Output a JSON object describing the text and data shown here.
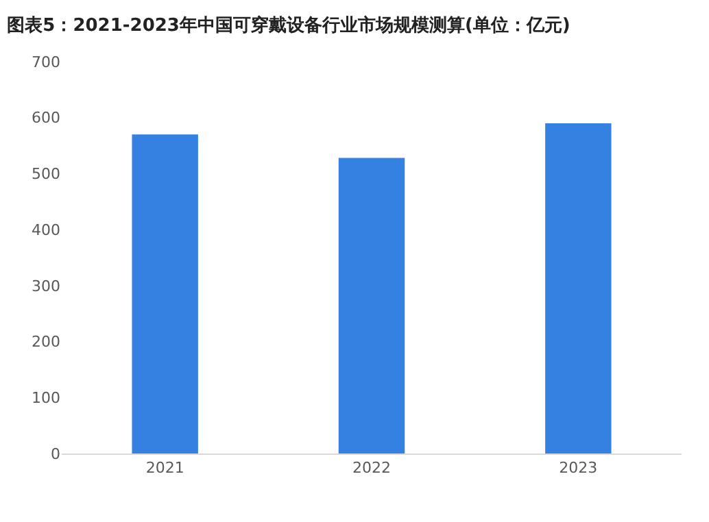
{
  "chart_data": {
    "type": "bar",
    "title": "图表5：2021-2023年中国可穿戴设备行业市场规模测算(单位：亿元)",
    "categories": [
      "2021",
      "2022",
      "2023"
    ],
    "values": [
      570,
      528,
      590
    ],
    "color": "#3481e2",
    "ylim": [
      0,
      700
    ],
    "yticks": [
      0,
      100,
      200,
      300,
      400,
      500,
      600,
      700
    ],
    "grid": false,
    "legend": false
  }
}
